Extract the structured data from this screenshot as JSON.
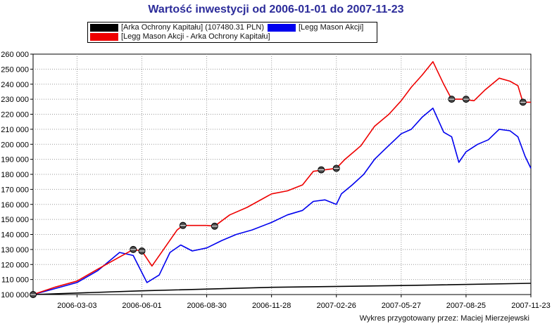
{
  "chart_data": {
    "type": "line",
    "title": "Wartość inwestycji od 2006-01-01 do 2007-11-23",
    "ylim": [
      100000,
      260000
    ],
    "ytick_labels": [
      "100 000",
      "110 000",
      "120 000",
      "130 000",
      "140 000",
      "150 000",
      "160 000",
      "170 000",
      "180 000",
      "190 000",
      "200 000",
      "210 000",
      "220 000",
      "230 000",
      "240 000",
      "250 000",
      "260 000"
    ],
    "xtick_labels": [
      "2006-03-03",
      "2006-06-01",
      "2006-08-30",
      "2006-11-28",
      "2007-02-26",
      "2007-05-27",
      "2007-08-25",
      "2007-11-23"
    ],
    "xlim": [
      "2006-01-01",
      "2007-11-23"
    ],
    "grid": true,
    "series": [
      {
        "name": "[Arka Ochrony Kapitału] (107480.31 PLN)",
        "color": "#000000",
        "points": [
          [
            "2006-01-01",
            100000
          ],
          [
            "2006-06-01",
            102500
          ],
          [
            "2006-11-28",
            104800
          ],
          [
            "2007-05-27",
            106000
          ],
          [
            "2007-11-23",
            107480
          ]
        ]
      },
      {
        "name": "[Legg Mason Akcji]",
        "color": "#0000ee",
        "points": [
          [
            "2006-01-01",
            100000
          ],
          [
            "2006-02-01",
            104000
          ],
          [
            "2006-03-03",
            108000
          ],
          [
            "2006-04-01",
            116000
          ],
          [
            "2006-05-01",
            128000
          ],
          [
            "2006-05-20",
            126000
          ],
          [
            "2006-06-08",
            108000
          ],
          [
            "2006-06-25",
            113000
          ],
          [
            "2006-07-10",
            128000
          ],
          [
            "2006-07-25",
            133000
          ],
          [
            "2006-08-10",
            129000
          ],
          [
            "2006-08-30",
            131000
          ],
          [
            "2006-09-20",
            136000
          ],
          [
            "2006-10-10",
            140000
          ],
          [
            "2006-11-01",
            143000
          ],
          [
            "2006-11-28",
            148000
          ],
          [
            "2006-12-20",
            153000
          ],
          [
            "2007-01-10",
            156000
          ],
          [
            "2007-01-25",
            162000
          ],
          [
            "2007-02-10",
            163000
          ],
          [
            "2007-02-26",
            160000
          ],
          [
            "2007-03-05",
            167000
          ],
          [
            "2007-03-20",
            173000
          ],
          [
            "2007-04-05",
            180000
          ],
          [
            "2007-04-20",
            190000
          ],
          [
            "2007-05-05",
            197000
          ],
          [
            "2007-05-27",
            207000
          ],
          [
            "2007-06-10",
            210000
          ],
          [
            "2007-06-25",
            218000
          ],
          [
            "2007-07-10",
            224000
          ],
          [
            "2007-07-25",
            208000
          ],
          [
            "2007-08-05",
            205000
          ],
          [
            "2007-08-15",
            188000
          ],
          [
            "2007-08-25",
            195000
          ],
          [
            "2007-09-10",
            200000
          ],
          [
            "2007-09-25",
            203000
          ],
          [
            "2007-10-10",
            210000
          ],
          [
            "2007-10-25",
            209000
          ],
          [
            "2007-11-05",
            205000
          ],
          [
            "2007-11-15",
            192000
          ],
          [
            "2007-11-23",
            184000
          ]
        ]
      },
      {
        "name": "[Legg Mason Akcji - Arka Ochrony Kapitału]",
        "color": "#ee0000",
        "points": [
          [
            "2006-01-01",
            100000
          ],
          [
            "2006-02-01",
            105000
          ],
          [
            "2006-03-03",
            109000
          ],
          [
            "2006-04-01",
            117000
          ],
          [
            "2006-05-01",
            125000
          ],
          [
            "2006-05-20",
            130000
          ],
          [
            "2006-06-01",
            129000
          ],
          [
            "2006-06-15",
            119000
          ],
          [
            "2006-07-01",
            130000
          ],
          [
            "2006-07-20",
            143000
          ],
          [
            "2006-07-28",
            146000
          ],
          [
            "2006-08-30",
            146000
          ],
          [
            "2006-09-10",
            145500
          ],
          [
            "2006-10-01",
            153000
          ],
          [
            "2006-10-25",
            158000
          ],
          [
            "2006-11-28",
            167000
          ],
          [
            "2006-12-20",
            169000
          ],
          [
            "2007-01-10",
            173000
          ],
          [
            "2007-01-25",
            182000
          ],
          [
            "2007-02-10",
            183000
          ],
          [
            "2007-02-26",
            184000
          ],
          [
            "2007-03-10",
            190000
          ],
          [
            "2007-04-01",
            199000
          ],
          [
            "2007-04-20",
            212000
          ],
          [
            "2007-05-10",
            220000
          ],
          [
            "2007-05-27",
            229000
          ],
          [
            "2007-06-10",
            238000
          ],
          [
            "2007-06-25",
            246000
          ],
          [
            "2007-07-10",
            255000
          ],
          [
            "2007-07-25",
            240000
          ],
          [
            "2007-08-05",
            230000
          ],
          [
            "2007-08-20",
            230000
          ],
          [
            "2007-09-05",
            229000
          ],
          [
            "2007-09-20",
            236000
          ],
          [
            "2007-10-10",
            244000
          ],
          [
            "2007-10-25",
            242000
          ],
          [
            "2007-11-05",
            239000
          ],
          [
            "2007-11-12",
            228000
          ],
          [
            "2007-11-23",
            228000
          ]
        ]
      }
    ],
    "markers": [
      {
        "date": "2006-01-01",
        "value": 100000
      },
      {
        "date": "2006-05-20",
        "value": 130000
      },
      {
        "date": "2006-06-01",
        "value": 129000
      },
      {
        "date": "2006-07-28",
        "value": 146000
      },
      {
        "date": "2006-09-10",
        "value": 145500
      },
      {
        "date": "2007-02-05",
        "value": 183000
      },
      {
        "date": "2007-02-26",
        "value": 184000
      },
      {
        "date": "2007-08-05",
        "value": 230000
      },
      {
        "date": "2007-08-25",
        "value": 230000
      },
      {
        "date": "2007-11-12",
        "value": 228000
      }
    ]
  },
  "legend": {
    "item1": "[Arka Ochrony Kapitału] (107480.31 PLN)",
    "item2": "[Legg Mason Akcji]",
    "item3": "[Legg Mason Akcji - Arka Ochrony Kapitału]",
    "color1": "#000000",
    "color2": "#0000ee",
    "color3": "#ee0000"
  },
  "credit": "Wykres przygotowany przez:  Maciej Mierzejewski"
}
